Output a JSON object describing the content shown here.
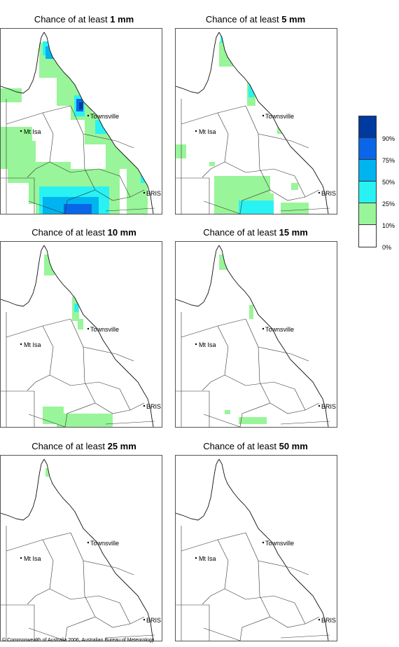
{
  "panels": [
    {
      "prefix": "Chance of at least ",
      "amount": "1 mm"
    },
    {
      "prefix": "Chance of at least ",
      "amount": "5 mm"
    },
    {
      "prefix": "Chance of at least ",
      "amount": "10 mm"
    },
    {
      "prefix": "Chance of at least ",
      "amount": "15 mm"
    },
    {
      "prefix": "Chance of at least ",
      "amount": "25 mm"
    },
    {
      "prefix": "Chance of at least ",
      "amount": "50 mm"
    }
  ],
  "places": {
    "townsville": "Townsville",
    "mt_isa": "Mt Isa",
    "brisbane": "BRIS"
  },
  "legend": {
    "labels": [
      "90%",
      "75%",
      "50%",
      "25%",
      "10%",
      "0%"
    ],
    "colors": [
      "#003a9e",
      "#0a66e8",
      "#00b4f0",
      "#29f2f2",
      "#99f599",
      "#ffffff"
    ]
  },
  "footer": "© Commonwealth of Australia 2006, Australian Bureau of Meteorology"
}
